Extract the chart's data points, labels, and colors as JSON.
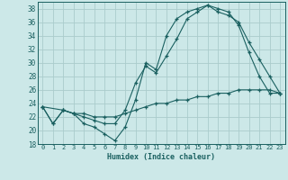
{
  "xlabel": "Humidex (Indice chaleur)",
  "bg_color": "#cce8e8",
  "grid_color": "#aacccc",
  "line_color": "#1a6060",
  "xlim": [
    -0.5,
    23.5
  ],
  "ylim": [
    18,
    39
  ],
  "yticks": [
    18,
    20,
    22,
    24,
    26,
    28,
    30,
    32,
    34,
    36,
    38
  ],
  "xticks": [
    0,
    1,
    2,
    3,
    4,
    5,
    6,
    7,
    8,
    9,
    10,
    11,
    12,
    13,
    14,
    15,
    16,
    17,
    18,
    19,
    20,
    21,
    22,
    23
  ],
  "line1_x": [
    0,
    1,
    2,
    3,
    4,
    5,
    6,
    7,
    8,
    9,
    10,
    11,
    12,
    13,
    14,
    15,
    16,
    17,
    18,
    19,
    20,
    21,
    22,
    23
  ],
  "line1_y": [
    23.5,
    21,
    23,
    22.5,
    21,
    20.5,
    19.5,
    18.5,
    20.5,
    24.5,
    30,
    29,
    34,
    36.5,
    37.5,
    38,
    38.5,
    38,
    37.5,
    35.5,
    31.5,
    28,
    25.5,
    25.5
  ],
  "line2_x": [
    0,
    1,
    2,
    3,
    4,
    5,
    6,
    7,
    8,
    9,
    10,
    11,
    12,
    13,
    14,
    15,
    16,
    17,
    18,
    19,
    20,
    21,
    22,
    23
  ],
  "line2_y": [
    23.5,
    21,
    23,
    22.5,
    22,
    21.5,
    21,
    21,
    23,
    27,
    29.5,
    28.5,
    31,
    33.5,
    36.5,
    37.5,
    38.5,
    37.5,
    37,
    36,
    33,
    30.5,
    28,
    25.5
  ],
  "line3_x": [
    0,
    2,
    3,
    4,
    5,
    6,
    7,
    8,
    9,
    10,
    11,
    12,
    13,
    14,
    15,
    16,
    17,
    18,
    19,
    20,
    21,
    22,
    23
  ],
  "line3_y": [
    23.5,
    23,
    22.5,
    22.5,
    22,
    22,
    22,
    22.5,
    23,
    23.5,
    24,
    24,
    24.5,
    24.5,
    25,
    25,
    25.5,
    25.5,
    26,
    26,
    26,
    26,
    25.5
  ]
}
